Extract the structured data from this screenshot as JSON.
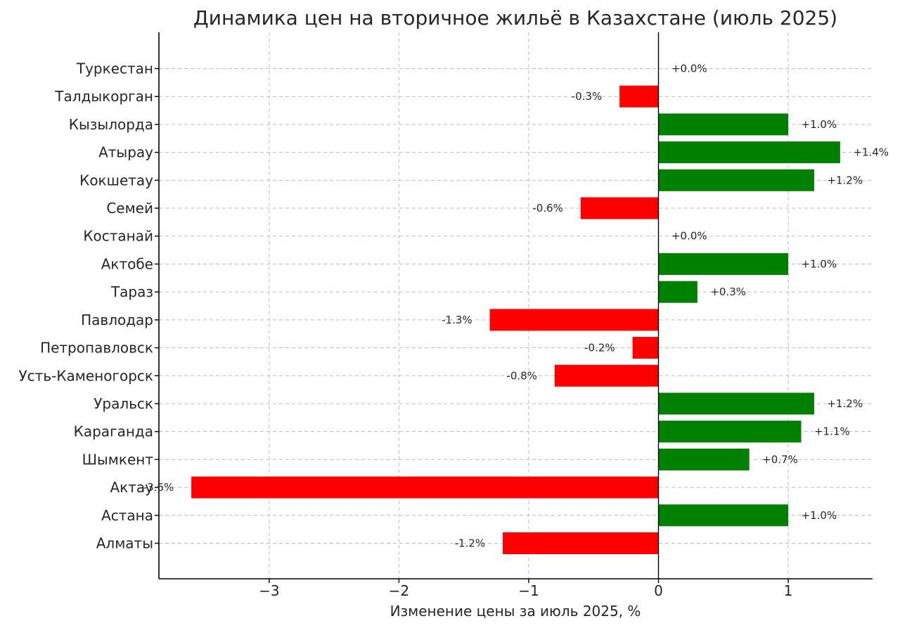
{
  "chart_data": {
    "type": "bar",
    "orientation": "horizontal",
    "title": "Динамика цен на вторичное жильё в Казахстане (июль 2025)",
    "xlabel": "Изменение цены за июль 2025, %",
    "ylabel": "",
    "xlim": [
      -3.85,
      1.65
    ],
    "xticks": [
      -3,
      -2,
      -1,
      0,
      1
    ],
    "xtick_labels": [
      "−3",
      "−2",
      "−1",
      "0",
      "1"
    ],
    "grid": true,
    "categories": [
      "Туркестан",
      "Талдыкорган",
      "Кызылорда",
      "Атырау",
      "Кокшетау",
      "Семей",
      "Костанай",
      "Актобе",
      "Тараз",
      "Павлодар",
      "Петропавловск",
      "Усть-Каменогорск",
      "Уральск",
      "Караганда",
      "Шымкент",
      "Актау",
      "Астана",
      "Алматы"
    ],
    "values": [
      0.0,
      -0.3,
      1.0,
      1.4,
      1.2,
      -0.6,
      0.0,
      1.0,
      0.3,
      -1.3,
      -0.2,
      -0.8,
      1.2,
      1.1,
      0.7,
      -3.6,
      1.0,
      -1.2
    ],
    "value_labels": [
      "+0.0%",
      "-0.3%",
      "+1.0%",
      "+1.4%",
      "+1.2%",
      "-0.6%",
      "+0.0%",
      "+1.0%",
      "+0.3%",
      "-1.3%",
      "-0.2%",
      "-0.8%",
      "+1.2%",
      "+1.1%",
      "+0.7%",
      "-3.6%",
      "+1.0%",
      "-1.2%"
    ],
    "colors": {
      "positive": "#008000",
      "negative": "#ff0000"
    }
  }
}
